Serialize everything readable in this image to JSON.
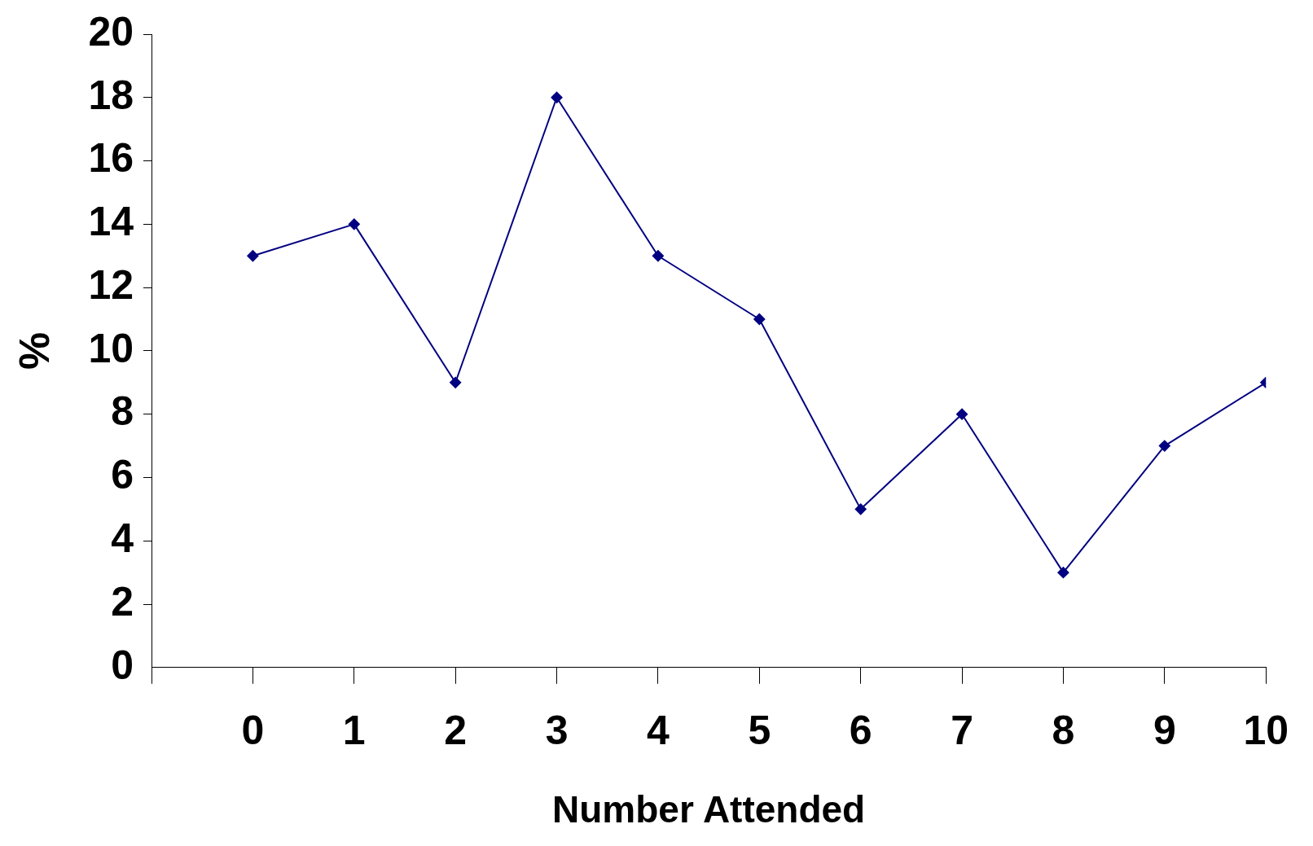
{
  "chart_data": {
    "type": "line",
    "xlabel": "Number Attended",
    "ylabel": "%",
    "x": [
      0,
      1,
      2,
      3,
      4,
      5,
      6,
      7,
      8,
      9,
      10
    ],
    "series": [
      {
        "color": "#000080",
        "values": [
          13,
          14,
          9,
          18,
          13,
          11,
          5,
          8,
          3,
          7,
          9
        ]
      }
    ],
    "xlim": [
      -1,
      10
    ],
    "xticks": [
      {
        "value": -1,
        "label": null
      },
      0,
      1,
      2,
      3,
      4,
      5,
      6,
      7,
      8,
      9,
      10
    ],
    "ylim": [
      0,
      20
    ],
    "yticks": [
      0,
      2,
      4,
      6,
      8,
      10,
      12,
      14,
      16,
      18,
      20
    ],
    "grid": false,
    "legend": false,
    "marker": "diamond",
    "line_style": "solid"
  }
}
